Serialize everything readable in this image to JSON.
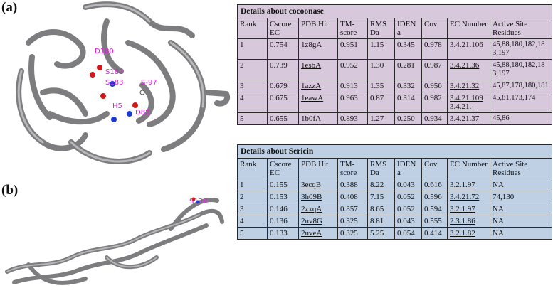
{
  "figure": {
    "panel_a_label": "(a)",
    "panel_b_label": "(b)",
    "annotations_a": [
      "D180",
      "S182",
      "S183",
      "S-97",
      "H5",
      "D88"
    ],
    "annotations_b": [
      "S130"
    ],
    "annotation_color": "#e020e0"
  },
  "cocoonase": {
    "title": "Details about cocoonase",
    "headers": [
      "Rank",
      "Cscore EC",
      "PDB Hit",
      "TM-score",
      "RMS Da",
      "IDEN a",
      "Cov",
      "EC Number",
      "Active Site Residues"
    ],
    "rows": [
      [
        "1",
        "0.754",
        "1z8gA",
        "0.951",
        "1.15",
        "0.345",
        "0.978",
        "3.4.21.106",
        "45,88,180,182,183,197"
      ],
      [
        "2",
        "0.739",
        "1esbA",
        "0.952",
        "1.30",
        "0.281",
        "0.987",
        "3.4.21.36",
        "45,88,180,182,183,197"
      ],
      [
        "3",
        "0.679",
        "1azzA",
        "0.913",
        "1.35",
        "0.332",
        "0.956",
        "3.4.21.32",
        "45,87,178,180,181"
      ],
      [
        "4",
        "0.675",
        "1eawA",
        "0.963",
        "0.87",
        "0.314",
        "0.982",
        "3.4.21.109 3.4.21.-",
        "45,81,173,174"
      ],
      [
        "5",
        "0.655",
        "1b0fA",
        "0.893",
        "1.27",
        "0.250",
        "0.934",
        "3.4.21.37",
        "45,86"
      ]
    ]
  },
  "sericin": {
    "title": "Details about Sericin",
    "headers": [
      "Rank",
      "Cscore EC",
      "PDB Hit",
      "TM-score",
      "RMS Da",
      "IDEN a",
      "Cov",
      "EC Number",
      "Active Site Residues"
    ],
    "rows": [
      [
        "1",
        "0.155",
        "3ecqB",
        "0.388",
        "8.22",
        "0.043",
        "0.616",
        "3.2.1.97",
        "NA"
      ],
      [
        "2",
        "0.153",
        "3h09B",
        "0.408",
        "7.15",
        "0.052",
        "0.596",
        "3.4.21.72",
        "74,130"
      ],
      [
        "3",
        "0.146",
        "2zxqA",
        "0.357",
        "8.65",
        "0.052",
        "0.594",
        "3.2.1.97",
        "NA"
      ],
      [
        "4",
        "0.136",
        "2uv8G",
        "0.325",
        "8.81",
        "0.043",
        "0.555",
        "2.3.1.86",
        "NA"
      ],
      [
        "5",
        "0.133",
        "2uveA",
        "0.325",
        "5.25",
        "0.054",
        "0.414",
        "3.2.1.82",
        "NA"
      ]
    ]
  }
}
